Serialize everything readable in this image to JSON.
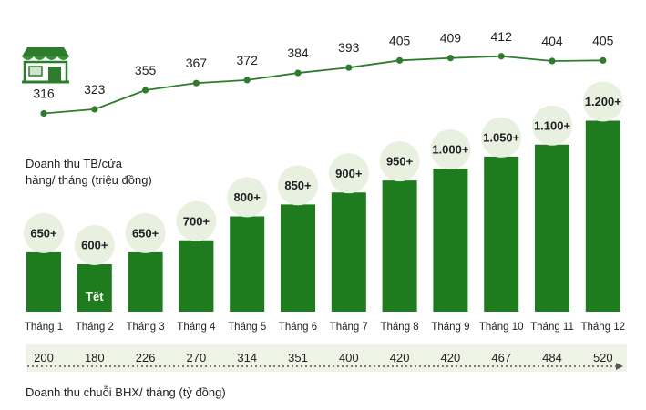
{
  "chart_data": {
    "type": "bar",
    "title": "",
    "categories": [
      "Tháng 1",
      "Tháng 2",
      "Tháng 3",
      "Tháng 4",
      "Tháng 5",
      "Tháng 6",
      "Tháng 7",
      "Tháng 8",
      "Tháng 9",
      "Tháng 10",
      "Tháng 11",
      "Tháng 12"
    ],
    "bar_labels": [
      "650+",
      "600+",
      "650+",
      "700+",
      "800+",
      "850+",
      "900+",
      "950+",
      "1.000+",
      "1.050+",
      "1.100+",
      "1.200+"
    ],
    "bar_values": [
      650,
      600,
      650,
      700,
      800,
      850,
      900,
      950,
      1000,
      1050,
      1100,
      1200
    ],
    "bar_annotation": {
      "index": 1,
      "text": "Tết"
    },
    "line_series": {
      "values": [
        316,
        323,
        355,
        367,
        372,
        384,
        393,
        405,
        409,
        412,
        404,
        405
      ],
      "labels": [
        "316",
        "323",
        "355",
        "367",
        "372",
        "384",
        "393",
        "405",
        "409",
        "412",
        "404",
        "405"
      ]
    },
    "revenue_row": {
      "values": [
        "200",
        "180",
        "226",
        "270",
        "314",
        "351",
        "400",
        "420",
        "420",
        "467",
        "484",
        "520"
      ],
      "label": "Doanh thu chuỗi BHX/ tháng (tỷ đồng)"
    },
    "line_label": "Doanh thu TB/cửa hàng/ tháng (triệu đồng)",
    "line_label_lines": [
      "Doanh thu TB/cửa",
      "hàng/ tháng (triệu đồng)"
    ],
    "icon": "store-icon",
    "colors": {
      "bar": "#1e7b1e",
      "line": "#2d7d2d",
      "circle_fill": "#e8f0e0",
      "row_band": "#eef3e6",
      "text": "#222222"
    }
  }
}
